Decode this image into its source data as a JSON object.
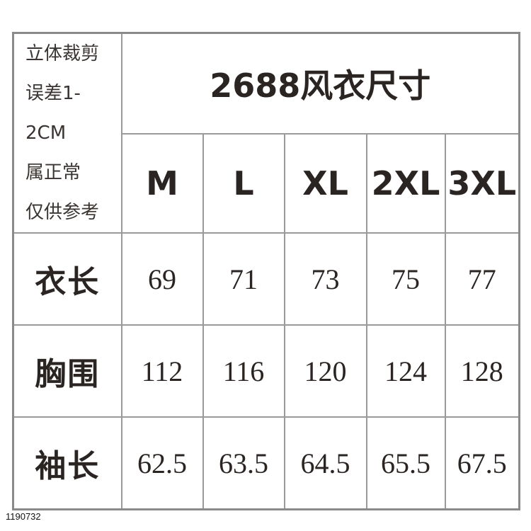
{
  "note_lines": [
    "立体裁剪",
    "误差1-2CM",
    "属正常",
    "仅供参考"
  ],
  "title": "2688风衣尺寸",
  "sizes": [
    "M",
    "L",
    "XL",
    "2XL",
    "3XL"
  ],
  "rows": [
    {
      "label": "衣长",
      "values": [
        "69",
        "71",
        "73",
        "75",
        "77"
      ]
    },
    {
      "label": "胸围",
      "values": [
        "112",
        "116",
        "120",
        "124",
        "128"
      ]
    },
    {
      "label": "袖长",
      "values": [
        "62.5",
        "63.5",
        "64.5",
        "65.5",
        "67.5"
      ]
    }
  ],
  "product_code": "1190732"
}
